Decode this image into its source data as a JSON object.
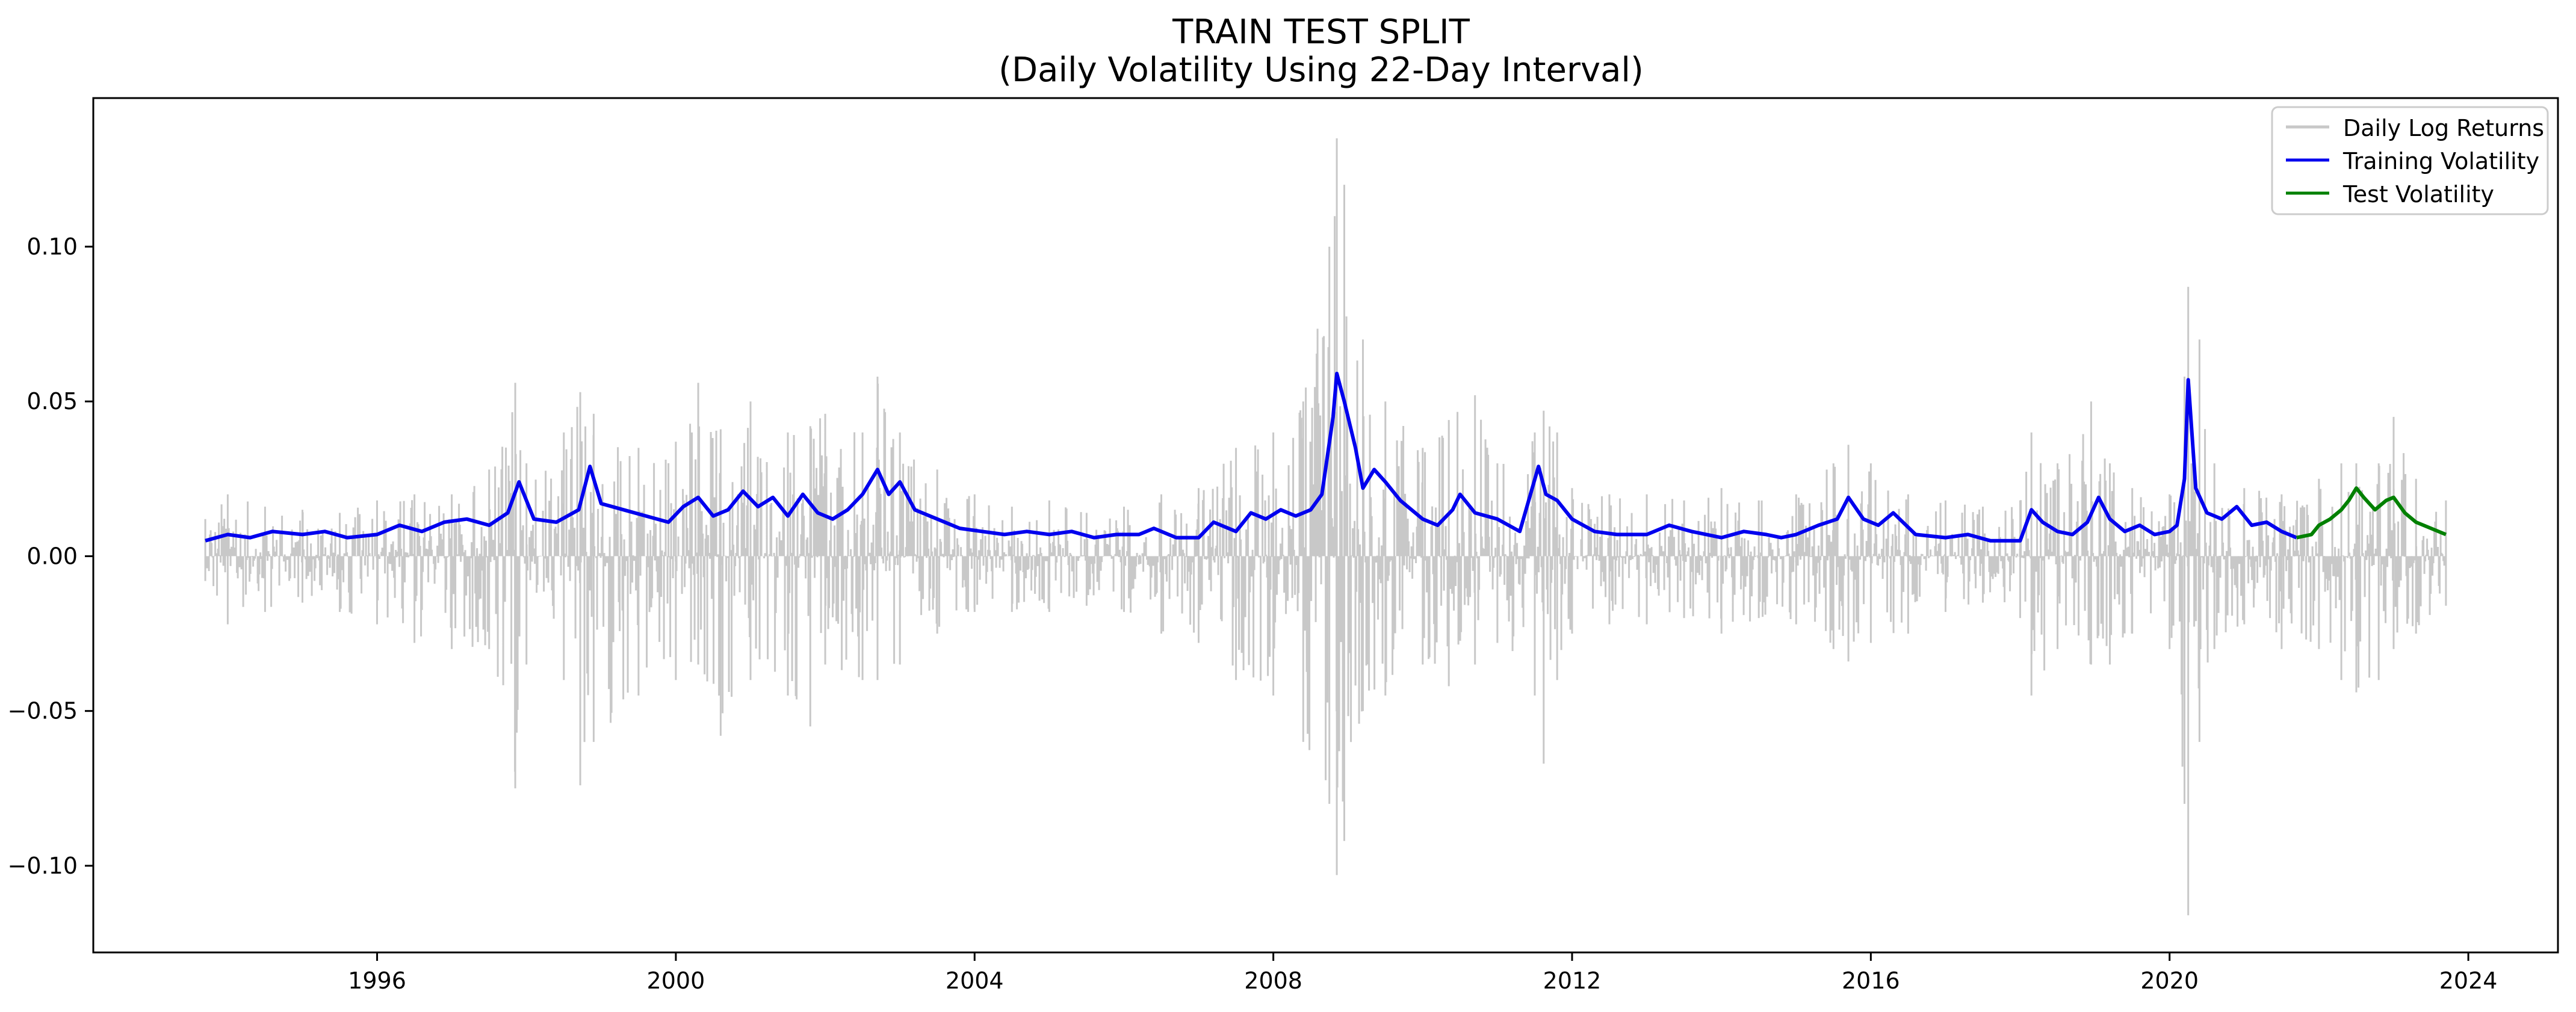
{
  "chart_data": {
    "type": "line",
    "title": "TRAIN TEST SPLIT",
    "subtitle": "(Daily Volatility Using 22-Day Interval)",
    "xlabel": "",
    "ylabel": "",
    "xlim": [
      1992.2,
      2025.2
    ],
    "ylim": [
      -0.128,
      0.148
    ],
    "x_ticks": [
      1996,
      2000,
      2004,
      2008,
      2012,
      2016,
      2020,
      2024
    ],
    "x_tick_labels": [
      "1996",
      "2000",
      "2004",
      "2008",
      "2012",
      "2016",
      "2020",
      "2024"
    ],
    "y_ticks": [
      -0.1,
      -0.05,
      0.0,
      0.05,
      0.1
    ],
    "y_tick_labels": [
      "−0.10",
      "−0.05",
      "0.00",
      "0.05",
      "0.10"
    ],
    "grid": false,
    "legend_position": "top-right",
    "returns_envelope": {
      "name": "Daily Log Returns",
      "color": "#c8c8c8",
      "x": [
        1993.7,
        1994.0,
        1994.5,
        1995.0,
        1995.5,
        1996.0,
        1996.5,
        1997.0,
        1997.5,
        1997.85,
        1998.0,
        1998.5,
        1998.72,
        1998.9,
        1999.5,
        2000.0,
        2000.3,
        2000.6,
        2001.0,
        2001.5,
        2001.8,
        2002.0,
        2002.5,
        2002.7,
        2003.0,
        2003.5,
        2004.0,
        2004.5,
        2005.0,
        2005.5,
        2006.0,
        2006.5,
        2007.0,
        2007.5,
        2008.0,
        2008.4,
        2008.75,
        2008.85,
        2008.95,
        2009.2,
        2009.5,
        2010.0,
        2010.35,
        2010.7,
        2011.0,
        2011.5,
        2011.62,
        2011.8,
        2012.0,
        2012.5,
        2013.0,
        2013.5,
        2014.0,
        2014.5,
        2015.0,
        2015.5,
        2015.7,
        2016.0,
        2016.5,
        2017.0,
        2017.5,
        2018.0,
        2018.15,
        2018.5,
        2018.95,
        2019.2,
        2019.5,
        2020.0,
        2020.2,
        2020.25,
        2020.4,
        2020.6,
        2021.0,
        2021.5,
        2022.0,
        2022.3,
        2022.5,
        2022.8,
        2023.0,
        2023.3,
        2023.7
      ],
      "upper": [
        0.012,
        0.02,
        0.016,
        0.015,
        0.014,
        0.018,
        0.02,
        0.02,
        0.028,
        0.056,
        0.03,
        0.04,
        0.053,
        0.046,
        0.035,
        0.037,
        0.056,
        0.041,
        0.05,
        0.04,
        0.042,
        0.046,
        0.04,
        0.058,
        0.04,
        0.028,
        0.02,
        0.016,
        0.018,
        0.014,
        0.016,
        0.02,
        0.022,
        0.035,
        0.04,
        0.05,
        0.1,
        0.135,
        0.12,
        0.07,
        0.05,
        0.035,
        0.044,
        0.052,
        0.03,
        0.04,
        0.047,
        0.04,
        0.022,
        0.02,
        0.02,
        0.018,
        0.022,
        0.018,
        0.02,
        0.03,
        0.036,
        0.03,
        0.02,
        0.018,
        0.016,
        0.018,
        0.04,
        0.03,
        0.05,
        0.03,
        0.022,
        0.02,
        0.058,
        0.087,
        0.07,
        0.03,
        0.022,
        0.02,
        0.025,
        0.03,
        0.03,
        0.03,
        0.045,
        0.025,
        0.018
      ],
      "lower": [
        -0.008,
        -0.022,
        -0.018,
        -0.015,
        -0.018,
        -0.022,
        -0.028,
        -0.03,
        -0.03,
        -0.075,
        -0.035,
        -0.04,
        -0.074,
        -0.06,
        -0.045,
        -0.04,
        -0.035,
        -0.058,
        -0.04,
        -0.045,
        -0.055,
        -0.035,
        -0.04,
        -0.04,
        -0.035,
        -0.025,
        -0.018,
        -0.018,
        -0.018,
        -0.016,
        -0.018,
        -0.025,
        -0.028,
        -0.04,
        -0.045,
        -0.06,
        -0.08,
        -0.103,
        -0.092,
        -0.05,
        -0.045,
        -0.035,
        -0.042,
        -0.035,
        -0.028,
        -0.045,
        -0.067,
        -0.04,
        -0.025,
        -0.022,
        -0.022,
        -0.02,
        -0.025,
        -0.02,
        -0.022,
        -0.03,
        -0.034,
        -0.028,
        -0.025,
        -0.018,
        -0.015,
        -0.02,
        -0.045,
        -0.03,
        -0.035,
        -0.035,
        -0.025,
        -0.03,
        -0.08,
        -0.116,
        -0.06,
        -0.03,
        -0.022,
        -0.03,
        -0.03,
        -0.04,
        -0.044,
        -0.04,
        -0.03,
        -0.025,
        -0.016
      ]
    },
    "series": [
      {
        "name": "Training Volatility",
        "color": "#0000ee",
        "x": [
          1993.7,
          1994.0,
          1994.3,
          1994.6,
          1995.0,
          1995.3,
          1995.6,
          1996.0,
          1996.3,
          1996.6,
          1996.9,
          1997.2,
          1997.5,
          1997.75,
          1997.9,
          1998.1,
          1998.4,
          1998.7,
          1998.85,
          1999.0,
          1999.3,
          1999.6,
          1999.9,
          2000.1,
          2000.3,
          2000.5,
          2000.7,
          2000.9,
          2001.1,
          2001.3,
          2001.5,
          2001.7,
          2001.9,
          2002.1,
          2002.3,
          2002.5,
          2002.7,
          2002.85,
          2003.0,
          2003.2,
          2003.5,
          2003.8,
          2004.1,
          2004.4,
          2004.7,
          2005.0,
          2005.3,
          2005.6,
          2005.9,
          2006.2,
          2006.4,
          2006.7,
          2007.0,
          2007.2,
          2007.5,
          2007.7,
          2007.9,
          2008.1,
          2008.3,
          2008.5,
          2008.65,
          2008.8,
          2008.85,
          2008.95,
          2009.1,
          2009.2,
          2009.35,
          2009.5,
          2009.7,
          2010.0,
          2010.2,
          2010.4,
          2010.5,
          2010.7,
          2011.0,
          2011.3,
          2011.55,
          2011.65,
          2011.8,
          2012.0,
          2012.3,
          2012.6,
          2013.0,
          2013.3,
          2013.6,
          2014.0,
          2014.3,
          2014.6,
          2014.8,
          2015.0,
          2015.3,
          2015.55,
          2015.7,
          2015.9,
          2016.1,
          2016.3,
          2016.6,
          2017.0,
          2017.3,
          2017.6,
          2018.0,
          2018.15,
          2018.3,
          2018.5,
          2018.7,
          2018.9,
          2019.05,
          2019.2,
          2019.4,
          2019.6,
          2019.8,
          2020.0,
          2020.1,
          2020.2,
          2020.25,
          2020.35,
          2020.5,
          2020.7,
          2020.9,
          2021.1,
          2021.3,
          2021.5,
          2021.7
        ],
        "y": [
          0.005,
          0.007,
          0.006,
          0.008,
          0.007,
          0.008,
          0.006,
          0.007,
          0.01,
          0.008,
          0.011,
          0.012,
          0.01,
          0.014,
          0.024,
          0.012,
          0.011,
          0.015,
          0.029,
          0.017,
          0.015,
          0.013,
          0.011,
          0.016,
          0.019,
          0.013,
          0.015,
          0.021,
          0.016,
          0.019,
          0.013,
          0.02,
          0.014,
          0.012,
          0.015,
          0.02,
          0.028,
          0.02,
          0.024,
          0.015,
          0.012,
          0.009,
          0.008,
          0.007,
          0.008,
          0.007,
          0.008,
          0.006,
          0.007,
          0.007,
          0.009,
          0.006,
          0.006,
          0.011,
          0.008,
          0.014,
          0.012,
          0.015,
          0.013,
          0.015,
          0.02,
          0.045,
          0.059,
          0.05,
          0.035,
          0.022,
          0.028,
          0.024,
          0.018,
          0.012,
          0.01,
          0.015,
          0.02,
          0.014,
          0.012,
          0.008,
          0.029,
          0.02,
          0.018,
          0.012,
          0.008,
          0.007,
          0.007,
          0.01,
          0.008,
          0.006,
          0.008,
          0.007,
          0.006,
          0.007,
          0.01,
          0.012,
          0.019,
          0.012,
          0.01,
          0.014,
          0.007,
          0.006,
          0.007,
          0.005,
          0.005,
          0.015,
          0.011,
          0.008,
          0.007,
          0.011,
          0.019,
          0.012,
          0.008,
          0.01,
          0.007,
          0.008,
          0.01,
          0.025,
          0.057,
          0.022,
          0.014,
          0.012,
          0.016,
          0.01,
          0.011,
          0.008,
          0.006
        ]
      },
      {
        "name": "Test Volatility",
        "color": "#008000",
        "x": [
          2021.7,
          2021.9,
          2022.0,
          2022.15,
          2022.3,
          2022.4,
          2022.5,
          2022.6,
          2022.75,
          2022.9,
          2023.0,
          2023.15,
          2023.3,
          2023.5,
          2023.7
        ],
        "y": [
          0.006,
          0.007,
          0.01,
          0.012,
          0.015,
          0.018,
          0.022,
          0.019,
          0.015,
          0.018,
          0.019,
          0.014,
          0.011,
          0.009,
          0.007
        ]
      }
    ]
  }
}
